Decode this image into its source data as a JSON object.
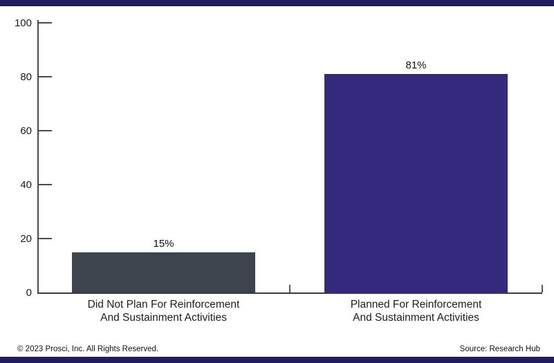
{
  "chart_data": {
    "type": "bar",
    "title": "",
    "xlabel": "",
    "ylabel": "",
    "categories": [
      "Did Not Plan For Reinforcement And Sustainment Activities",
      "Planned For Reinforcement And Sustainment Activities"
    ],
    "category_lines": [
      [
        "Did Not Plan For Reinforcement",
        "And Sustainment Activities"
      ],
      [
        "Planned For Reinforcement",
        "And Sustainment Activities"
      ]
    ],
    "values": [
      15,
      81
    ],
    "data_labels": [
      "15%",
      "81%"
    ],
    "series_colors": [
      "#3d444d",
      "#332a7e"
    ],
    "ylim": [
      0,
      100
    ],
    "yticks": [
      0,
      20,
      40,
      60,
      80,
      100
    ],
    "grid": false,
    "legend": false
  },
  "footer": {
    "copyright": "© 2023 Prosci, Inc. All Rights Reserved.",
    "source": "Source: Research Hub"
  },
  "style": {
    "band_navy": "#221c5e",
    "bar_slate": "#3d444d",
    "bar_indigo": "#332a7e",
    "axis_color": "#4a4a4a",
    "text_color": "#1a1a1a"
  }
}
